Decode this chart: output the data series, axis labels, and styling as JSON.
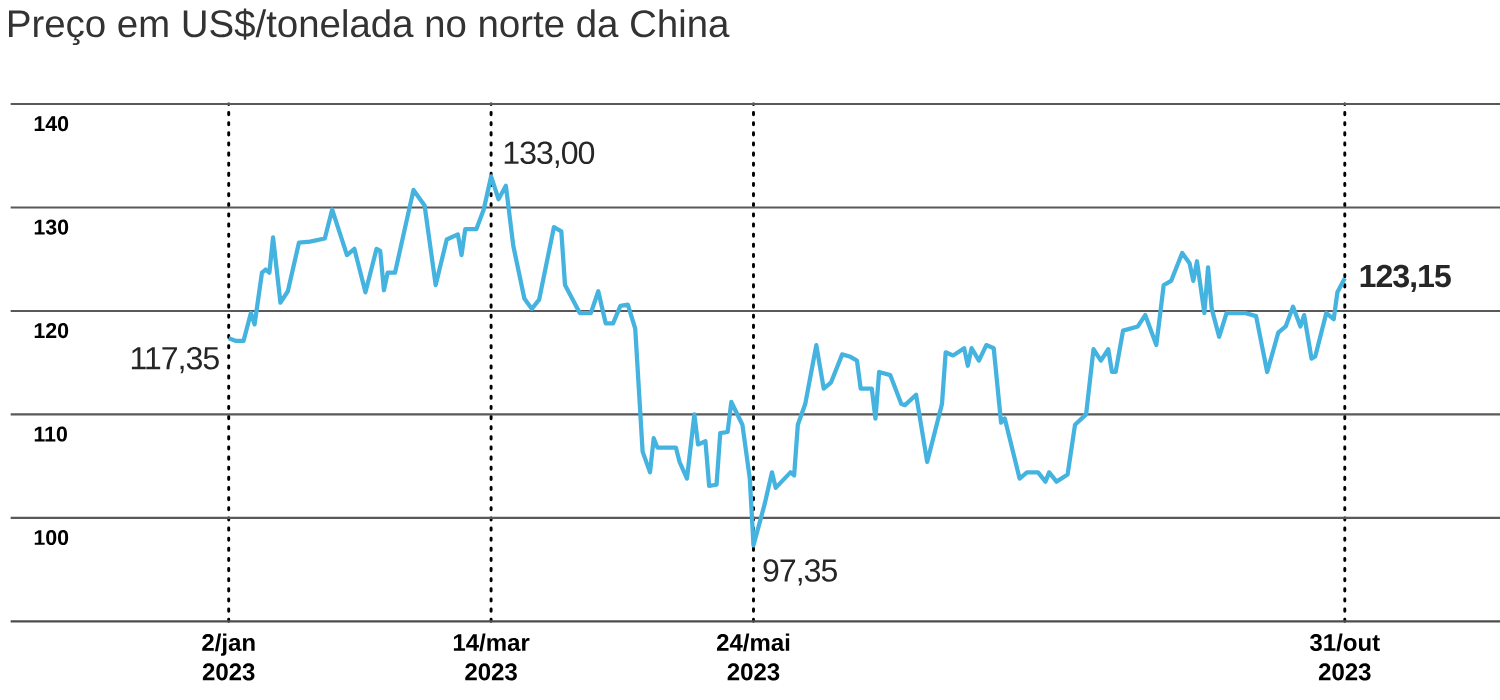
{
  "chart_data": {
    "type": "line",
    "title": "Preço em US$/tonelada no norte da China",
    "x": [
      "2023-01-02",
      "2023-01-04",
      "2023-01-06",
      "2023-01-08",
      "2023-01-09",
      "2023-01-11",
      "2023-01-12",
      "2023-01-13",
      "2023-01-14",
      "2023-01-16",
      "2023-01-18",
      "2023-01-21",
      "2023-01-24",
      "2023-01-28",
      "2023-01-30",
      "2023-02-03",
      "2023-02-05",
      "2023-02-08",
      "2023-02-11",
      "2023-02-12",
      "2023-02-13",
      "2023-02-14",
      "2023-02-16",
      "2023-02-21",
      "2023-02-24",
      "2023-02-27",
      "2023-03-02",
      "2023-03-05",
      "2023-03-06",
      "2023-03-07",
      "2023-03-10",
      "2023-03-12",
      "2023-03-14",
      "2023-03-16",
      "2023-03-18",
      "2023-03-20",
      "2023-03-23",
      "2023-03-25",
      "2023-03-27",
      "2023-03-31",
      "2023-04-02",
      "2023-04-03",
      "2023-04-07",
      "2023-04-10",
      "2023-04-12",
      "2023-04-14",
      "2023-04-16",
      "2023-04-18",
      "2023-04-20",
      "2023-04-22",
      "2023-04-24",
      "2023-04-26",
      "2023-04-27",
      "2023-04-28",
      "2023-05-03",
      "2023-05-04",
      "2023-05-06",
      "2023-05-08",
      "2023-05-09",
      "2023-05-11",
      "2023-05-12",
      "2023-05-14",
      "2023-05-15",
      "2023-05-17",
      "2023-05-18",
      "2023-05-21",
      "2023-05-23",
      "2023-05-24",
      "2023-05-27",
      "2023-05-29",
      "2023-05-30",
      "2023-06-03",
      "2023-06-04",
      "2023-06-05",
      "2023-06-07",
      "2023-06-10",
      "2023-06-12",
      "2023-06-14",
      "2023-06-17",
      "2023-06-19",
      "2023-06-21",
      "2023-06-22",
      "2023-06-25",
      "2023-06-26",
      "2023-06-27",
      "2023-06-30",
      "2023-07-03",
      "2023-07-04",
      "2023-07-07",
      "2023-07-10",
      "2023-07-14",
      "2023-07-15",
      "2023-07-17",
      "2023-07-20",
      "2023-07-21",
      "2023-07-22",
      "2023-07-24",
      "2023-07-26",
      "2023-07-28",
      "2023-07-30",
      "2023-07-31",
      "2023-08-04",
      "2023-08-06",
      "2023-08-09",
      "2023-08-11",
      "2023-08-12",
      "2023-08-14",
      "2023-08-17",
      "2023-08-19",
      "2023-08-22",
      "2023-08-24",
      "2023-08-26",
      "2023-08-28",
      "2023-08-29",
      "2023-08-30",
      "2023-09-01",
      "2023-09-05",
      "2023-09-07",
      "2023-09-10",
      "2023-09-12",
      "2023-09-14",
      "2023-09-17",
      "2023-09-19",
      "2023-09-20",
      "2023-09-21",
      "2023-09-23",
      "2023-09-24",
      "2023-09-25",
      "2023-09-27",
      "2023-09-29",
      "2023-10-04",
      "2023-10-07",
      "2023-10-10",
      "2023-10-13",
      "2023-10-15",
      "2023-10-17",
      "2023-10-19",
      "2023-10-20",
      "2023-10-22",
      "2023-10-23",
      "2023-10-26",
      "2023-10-28",
      "2023-10-29",
      "2023-10-31"
    ],
    "series": [
      {
        "color": "#45b3e0",
        "values": [
          117.35,
          117.1,
          117.1,
          119.8,
          118.7,
          123.7,
          124.0,
          123.7,
          127.1,
          120.8,
          121.9,
          126.6,
          126.7,
          127.0,
          129.8,
          125.4,
          126.0,
          121.8,
          126.0,
          125.8,
          122.0,
          123.7,
          123.7,
          131.7,
          130.2,
          122.5,
          126.9,
          127.4,
          125.4,
          127.9,
          127.9,
          129.8,
          133.0,
          130.8,
          132.1,
          126.3,
          121.2,
          120.2,
          121.1,
          128.1,
          127.7,
          122.5,
          119.8,
          119.8,
          121.9,
          118.8,
          118.8,
          120.5,
          120.6,
          118.3,
          106.4,
          104.4,
          107.7,
          106.8,
          106.8,
          105.4,
          103.8,
          110.0,
          107.1,
          107.4,
          103.1,
          103.2,
          108.2,
          108.3,
          111.2,
          109.0,
          103.8,
          97.35,
          101.3,
          104.4,
          102.9,
          104.4,
          104.1,
          109.0,
          111.0,
          116.7,
          112.5,
          113.1,
          115.8,
          115.6,
          115.2,
          112.5,
          112.5,
          109.6,
          114.1,
          113.8,
          111.0,
          110.9,
          111.9,
          105.4,
          111.0,
          116.0,
          115.7,
          116.4,
          114.7,
          116.4,
          115.2,
          116.7,
          116.4,
          109.2,
          109.6,
          103.8,
          104.4,
          104.4,
          103.5,
          104.4,
          103.5,
          104.2,
          109.0,
          110.0,
          116.3,
          115.2,
          116.3,
          114.1,
          114.1,
          118.1,
          118.5,
          119.6,
          116.7,
          122.5,
          122.9,
          125.6,
          124.6,
          122.9,
          124.8,
          119.8,
          124.2,
          120.2,
          117.5,
          119.8,
          119.8,
          119.5,
          114.1,
          117.9,
          118.5,
          120.4,
          118.5,
          119.6,
          115.4,
          115.6,
          119.8,
          119.2,
          121.8,
          123.15
        ]
      }
    ],
    "xlim": [
      "2022-11-04",
      "2023-12-12"
    ],
    "xticks": [
      {
        "value": "2023-01-02",
        "label": "2/jan 2023"
      },
      {
        "value": "2023-03-14",
        "label": "14/mar 2023"
      },
      {
        "value": "2023-05-24",
        "label": "24/mai 2023"
      },
      {
        "value": "2023-10-31",
        "label": "31/out 2023"
      }
    ],
    "ylim": [
      90,
      140
    ],
    "yticks": [
      100,
      110,
      120,
      130,
      140
    ],
    "grid": true,
    "annotations": [
      {
        "text": "117,35",
        "x": "2023-01-02",
        "y": 117.35
      },
      {
        "text": "133,00",
        "x": "2023-03-14",
        "y": 133.0
      },
      {
        "text": "97,35",
        "x": "2023-05-24",
        "y": 97.35
      },
      {
        "text": "123,15",
        "x": "2023-10-31",
        "y": 123.15
      }
    ]
  }
}
